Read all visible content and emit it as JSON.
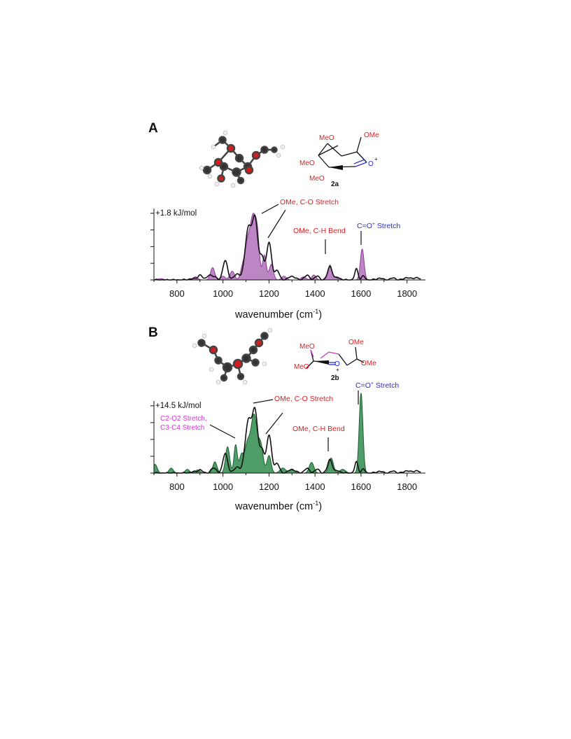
{
  "panels": [
    {
      "letter": "A",
      "compound_label": "2a",
      "energy_label": "+1.8 kJ/mol",
      "xlabel_text": "wavenumber (cm",
      "xlabel_sup": "-1",
      "xlabel_close": ")",
      "structure_labels": [
        "MeO",
        "OMe",
        "MeO",
        "MeO",
        "O",
        "+"
      ],
      "annotations": {
        "co": "OMe, C-O Stretch",
        "ch": "OMe, C-H Bend",
        "cplus": "C=O",
        "cplus_sup": "+",
        "cplus_tail": " Stretch"
      }
    },
    {
      "letter": "B",
      "compound_label": "2b",
      "energy_label": "+14.5 kJ/mol",
      "xlabel_text": "wavenumber (cm",
      "xlabel_sup": "-1",
      "xlabel_close": ")",
      "structure_labels": [
        "MeO",
        "OMe",
        "MeO",
        "OMe",
        "O",
        "+"
      ],
      "annotations": {
        "co": "OMe, C-O Stretch",
        "ch": "OMe, C-H Bend",
        "cplus": "C=O",
        "cplus_sup": "+",
        "cplus_tail": " Stretch",
        "c2": "C2-O2 Stretch,",
        "c3": "C3-C4 Stretch"
      }
    }
  ],
  "colors": {
    "fillA": "#b070b8",
    "strokeA": "#8a3f93",
    "fillB": "#2f8c4c",
    "strokeB": "#1c5e30",
    "exp": "#111111"
  },
  "chart_data": [
    {
      "type": "line",
      "panel": "A",
      "xlabel": "wavenumber (cm-1)",
      "xlim": [
        700,
        1880
      ],
      "ylim": [
        0,
        1.05
      ],
      "xticks": [
        800,
        1000,
        1200,
        1400,
        1600,
        1800
      ],
      "series": [
        {
          "style": "filled-area",
          "peaks": [
            [
              730,
              0.02,
              12
            ],
            [
              880,
              0.05,
              10
            ],
            [
              955,
              0.2,
              9
            ],
            [
              1000,
              0.06,
              10
            ],
            [
              1040,
              0.14,
              10
            ],
            [
              1085,
              0.2,
              9
            ],
            [
              1105,
              0.5,
              10
            ],
            [
              1130,
              1.0,
              13
            ],
            [
              1150,
              0.55,
              9
            ],
            [
              1180,
              0.4,
              8
            ],
            [
              1210,
              0.25,
              9
            ],
            [
              1265,
              0.06,
              10
            ],
            [
              1350,
              0.05,
              10
            ],
            [
              1395,
              0.08,
              9
            ],
            [
              1465,
              0.24,
              9
            ],
            [
              1495,
              0.05,
              10
            ],
            [
              1605,
              0.5,
              8
            ]
          ]
        },
        {
          "style": "line",
          "peaks": [
            [
              865,
              0.02,
              14
            ],
            [
              900,
              0.08,
              10
            ],
            [
              940,
              0.08,
              10
            ],
            [
              965,
              0.05,
              10
            ],
            [
              1010,
              0.32,
              10
            ],
            [
              1060,
              0.1,
              11
            ],
            [
              1110,
              0.82,
              14
            ],
            [
              1140,
              0.95,
              12
            ],
            [
              1170,
              0.35,
              9
            ],
            [
              1200,
              0.6,
              11
            ],
            [
              1235,
              0.15,
              10
            ],
            [
              1300,
              0.06,
              14
            ],
            [
              1365,
              0.07,
              12
            ],
            [
              1410,
              0.06,
              10
            ],
            [
              1465,
              0.22,
              10
            ],
            [
              1500,
              0.04,
              10
            ],
            [
              1580,
              0.18,
              7
            ],
            [
              1610,
              0.06,
              8
            ],
            [
              1680,
              0.03,
              12
            ],
            [
              1740,
              0.03,
              12
            ],
            [
              1800,
              0.04,
              12
            ],
            [
              1840,
              0.04,
              12
            ]
          ]
        }
      ]
    },
    {
      "type": "line",
      "panel": "B",
      "xlabel": "wavenumber (cm-1)",
      "xlim": [
        700,
        1880
      ],
      "ylim": [
        0,
        1.05
      ],
      "xticks": [
        800,
        1000,
        1200,
        1400,
        1600,
        1800
      ],
      "series": [
        {
          "style": "filled-area",
          "peaks": [
            [
              705,
              0.14,
              9
            ],
            [
              775,
              0.08,
              9
            ],
            [
              845,
              0.06,
              9
            ],
            [
              890,
              0.05,
              10
            ],
            [
              965,
              0.18,
              9
            ],
            [
              1020,
              0.42,
              9
            ],
            [
              1055,
              0.45,
              7
            ],
            [
              1080,
              0.28,
              9
            ],
            [
              1105,
              0.42,
              11
            ],
            [
              1135,
              0.93,
              14
            ],
            [
              1165,
              0.4,
              10
            ],
            [
              1200,
              0.28,
              9
            ],
            [
              1260,
              0.08,
              12
            ],
            [
              1300,
              0.05,
              12
            ],
            [
              1385,
              0.17,
              10
            ],
            [
              1470,
              0.24,
              10
            ],
            [
              1520,
              0.06,
              12
            ],
            [
              1600,
              1.28,
              8
            ]
          ]
        },
        {
          "style": "line",
          "peaks": [
            [
              870,
              0.02,
              14
            ],
            [
              900,
              0.05,
              10
            ],
            [
              960,
              0.08,
              12
            ],
            [
              1010,
              0.32,
              10
            ],
            [
              1060,
              0.1,
              11
            ],
            [
              1110,
              0.82,
              14
            ],
            [
              1140,
              0.95,
              12
            ],
            [
              1170,
              0.35,
              9
            ],
            [
              1200,
              0.6,
              11
            ],
            [
              1235,
              0.15,
              10
            ],
            [
              1300,
              0.06,
              14
            ],
            [
              1365,
              0.07,
              12
            ],
            [
              1410,
              0.06,
              10
            ],
            [
              1465,
              0.22,
              10
            ],
            [
              1500,
              0.04,
              10
            ],
            [
              1580,
              0.18,
              7
            ],
            [
              1610,
              0.06,
              8
            ],
            [
              1680,
              0.03,
              12
            ],
            [
              1740,
              0.03,
              12
            ],
            [
              1800,
              0.04,
              12
            ],
            [
              1840,
              0.04,
              12
            ]
          ]
        }
      ]
    }
  ]
}
